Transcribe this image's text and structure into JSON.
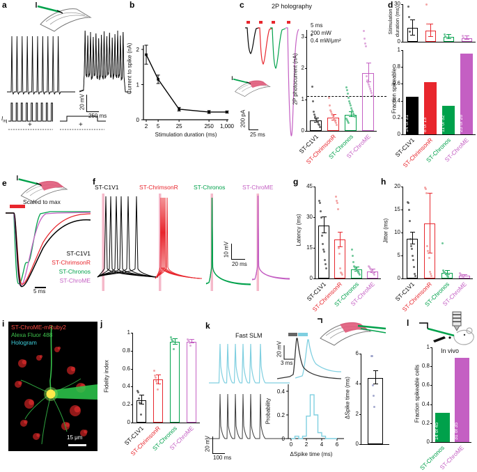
{
  "opsins": [
    {
      "name": "ST-C1V1",
      "color": "#000000",
      "dot": "#5a5a5a"
    },
    {
      "name": "ST-ChrimsonR",
      "color": "#e8262d",
      "dot": "#f29b9b"
    },
    {
      "name": "ST-Chronos",
      "color": "#00a14b",
      "dot": "#5fc28f"
    },
    {
      "name": "ST-ChroME",
      "color": "#c45fc3",
      "dot": "#daa0d8"
    }
  ],
  "colors": {
    "cyan": "#7fcfe0",
    "pink_stim": "#f5b9ca",
    "slate_dot": "#9aa1c9",
    "hologram": "#3fd2e0",
    "alexa": "#3fc24d",
    "mruby": "#ff4b42"
  },
  "panels": {
    "a": {
      "label": "a",
      "scale_v": "20 mV",
      "scale_h": "250 ms",
      "inj_main": "I",
      "inj_sub": "inj",
      "plus": "+"
    },
    "b": {
      "label": "b",
      "ylabel": "Current to spike (nA)",
      "xlabel": "Stimulation duration (ms)",
      "chart": {
        "type": "line",
        "x": [
          2,
          5,
          25,
          250,
          1000
        ],
        "xticklabels": [
          "2",
          "5",
          "25",
          "250",
          "1,000"
        ],
        "y": [
          1.85,
          1.15,
          0.3,
          0.22,
          0.22
        ],
        "err": [
          0.27,
          0.12,
          0.05,
          0.04,
          0.03
        ],
        "yticks": [
          "0",
          "1",
          "2"
        ],
        "ytickvals": [
          0,
          1,
          2
        ],
        "ymax": 2.6
      }
    },
    "c": {
      "label": "c",
      "title": "2P holography",
      "annotations": [
        "5 ms",
        "200 mW",
        "0.4 mW/μm²"
      ],
      "ylabel": "2P photocurrent (nA)",
      "scale_v": "200 pA",
      "scale_h": "25 ms",
      "chart": {
        "type": "bar-scatter",
        "max": 3.22,
        "yticks": [
          "3",
          "2",
          "1",
          "0"
        ],
        "bw": 17,
        "values": [
          0.33,
          0.42,
          0.52,
          1.85
        ],
        "errs": [
          0.07,
          0.09,
          0.08,
          0.3
        ],
        "dashed_y": 1.1,
        "showCats": true,
        "dots": [
          [
            3.05,
            1.42,
            0.95,
            0.6,
            0.52,
            0.45,
            0.4,
            0.36,
            0.3,
            0.27,
            0.22,
            0.18,
            0.12
          ],
          [
            1.05,
            0.8,
            0.66,
            0.6,
            0.55,
            0.5,
            0.44,
            0.4,
            0.34,
            0.3,
            0.26,
            0.2
          ],
          [
            1.38,
            1.3,
            1.18,
            1.05,
            0.95,
            0.88,
            0.8,
            0.72,
            0.66,
            0.6,
            0.55,
            0.5,
            0.45,
            0.4,
            0.35,
            0.3,
            0.25
          ],
          [
            3.18,
            2.95,
            2.78,
            2.7,
            1.75,
            1.62,
            1.55,
            1.48,
            1.42,
            1.35,
            1.28,
            1.2,
            1.12
          ]
        ]
      }
    },
    "d": {
      "label": "d",
      "top": {
        "ylabel1": "Stimulation",
        "ylabel2": "duration (ms)",
        "chart": {
          "type": "bar",
          "max": 30,
          "yticks": [
            "30",
            "0"
          ],
          "bw": 15,
          "values": [
            11,
            9,
            4,
            3
          ],
          "errs": [
            6,
            5,
            1.5,
            1.2
          ],
          "dots": [
            [
              28,
              20,
              8
            ],
            [
              30,
              14
            ],
            [
              6,
              4
            ],
            [
              5,
              3
            ]
          ]
        }
      },
      "bottom": {
        "ylabel": "Fraction spikeable",
        "chart": {
          "type": "bar",
          "max": 1,
          "yticks": [
            "1",
            "0.8",
            "0.6",
            "0.4",
            "0.2",
            "0"
          ],
          "bw": 18,
          "values": [
            0.45,
            0.62,
            0.34,
            0.96
          ],
          "filled": true,
          "showCats": true,
          "counts": [
            "14 of 31",
            "8 of 13",
            "11 of 32",
            "25 of 26"
          ]
        }
      }
    },
    "e": {
      "label": "e",
      "title": "Scaled to max",
      "scale_h": "5 ms"
    },
    "f": {
      "label": "f",
      "scale_v": "10 mV",
      "scale_h": "20 ms"
    },
    "g": {
      "label": "g",
      "ylabel": "Latency (ms)",
      "chart": {
        "type": "bar-scatter",
        "max": 45,
        "yticks": [
          "45",
          "30",
          "15",
          "0"
        ],
        "bw": 16,
        "values": [
          26,
          19,
          4.5,
          3.5
        ],
        "errs": [
          4,
          3.5,
          1,
          0.8
        ],
        "showCats": true,
        "dots": [
          [
            38,
            37,
            33,
            30,
            21,
            17,
            14,
            13,
            9,
            7,
            5
          ],
          [
            40,
            38,
            37,
            34,
            15,
            12,
            5,
            3,
            2.5,
            2
          ],
          [
            14,
            11,
            8,
            6,
            5.5,
            5,
            4.5,
            4,
            3.5,
            3,
            2.5,
            2
          ],
          [
            6,
            5.5,
            5,
            4.5,
            4,
            3.5,
            3,
            2.5,
            2
          ]
        ]
      }
    },
    "h": {
      "label": "h",
      "ylabel": "Jitter (ms)",
      "chart": {
        "type": "bar-scatter",
        "max": 20,
        "yticks": [
          "20",
          "15",
          "10",
          "5",
          "0"
        ],
        "bw": 16,
        "values": [
          8.7,
          12,
          1.2,
          0.6
        ],
        "errs": [
          1.3,
          6.5,
          0.4,
          0.2
        ],
        "showCats": true,
        "dots": [
          [
            16.6,
            16.4,
            15,
            12.5,
            8.6,
            7,
            6.4,
            5,
            4,
            2.5,
            1,
            0.5
          ],
          [
            19.7,
            19.4,
            18.5,
            7,
            6,
            5.5,
            4.5,
            1.5,
            1,
            0.6
          ],
          [
            7.7,
            1.8,
            1.5,
            1.3,
            1.1,
            1,
            0.8,
            0.6,
            0.4
          ],
          [
            1.1,
            0.9,
            0.8,
            0.6,
            0.5,
            0.4
          ]
        ]
      }
    },
    "i": {
      "label": "i",
      "legend": [
        {
          "text": "ST-ChroME-mRuby2",
          "color": "#ff4b42"
        },
        {
          "text": "Alexa Fluor 488",
          "color": "#3fc24d"
        },
        {
          "text": "Hologram",
          "color": "#3fd2e0"
        }
      ],
      "scalebar": "15 μm"
    },
    "j": {
      "label": "j",
      "ylabel": "Fidelity index",
      "chart": {
        "type": "bar-scatter",
        "max": 1,
        "yticks": [
          "1",
          "0.8",
          "0.6",
          "0.4",
          "0.2",
          "0"
        ],
        "bw": 14,
        "values": [
          0.25,
          0.48,
          0.9,
          0.9
        ],
        "errs": [
          0.05,
          0.05,
          0.03,
          0.02
        ],
        "showCats": true,
        "dots": [
          [
            0.35,
            0.34,
            0.27,
            0.22,
            0.21,
            0.09
          ],
          [
            0.58,
            0.52,
            0.5,
            0.46,
            0.44,
            0.37
          ],
          [
            0.95,
            0.93,
            0.91,
            0.9,
            0.82
          ],
          [
            0.93,
            0.92,
            0.9,
            0.89,
            0.86
          ]
        ]
      }
    },
    "k": {
      "label": "k",
      "title": "Fast SLM",
      "trace_scale_v": "20 mV",
      "trace_scale_h": "100 ms",
      "inset_scale_v": "20 mV",
      "inset_scale_h": "3 ms",
      "hist": {
        "ylabel": "Probability",
        "xlabel": "ΔSpike time (ms)",
        "yticks": [
          "0.4",
          "0.2",
          "0"
        ],
        "ytickvals": [
          0.4,
          0.2,
          0
        ],
        "xticks": [
          "0",
          "2",
          "4",
          "6"
        ],
        "xtickvals": [
          0,
          2,
          4,
          6
        ],
        "bin_width": 0.5,
        "probs": [
          0,
          0.02,
          0,
          0.02,
          0.19,
          0.37,
          0.2,
          0.05,
          0.02,
          0,
          0,
          0
        ]
      },
      "bar": {
        "ylabel": "ΔSpike time (ms)",
        "chart": {
          "type": "bar-scatter",
          "max": 6,
          "yticks": [
            "6",
            "4",
            "2",
            "0"
          ],
          "bw": 22,
          "values": [
            4.4
          ],
          "errs": [
            0.45
          ],
          "colors": [
            "#000000"
          ],
          "cats": [
            0
          ],
          "dotColor": "#9aa1c9",
          "dots": [
            [
              5.85,
              5.85,
              3.9,
              3.2,
              2.45
            ]
          ]
        }
      }
    },
    "l": {
      "label": "l",
      "title": "In vivo",
      "ylabel": "Fraction spikeable cells",
      "chart": {
        "type": "bar",
        "max": 1,
        "yticks": [
          "1",
          "0.8",
          "0.6",
          "0.4",
          "0.2",
          "0"
        ],
        "bw": 21,
        "values": [
          0.31,
          0.89
        ],
        "filled": true,
        "cats": [
          2,
          3
        ],
        "showCats": true,
        "counts": [
          "14 of 45",
          "31 of 35"
        ]
      }
    }
  }
}
